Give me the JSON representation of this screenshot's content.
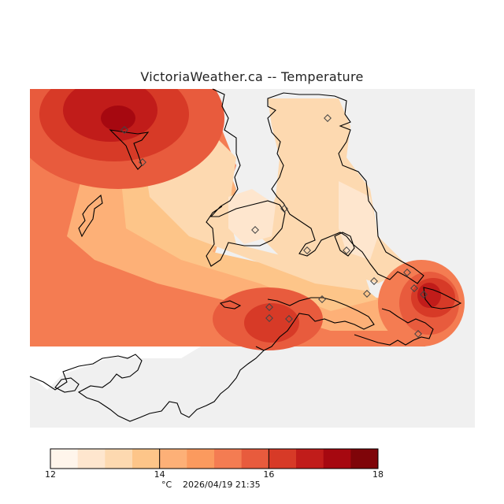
{
  "title": "VictoriaWeather.ca -- Temperature",
  "timestamp": "2026/04/19 21:35",
  "colorbar": {
    "units": "°C",
    "min": 12,
    "max": 18,
    "step": 0.5,
    "tick_labels": [
      "12",
      "14",
      "16",
      "18"
    ],
    "colors": [
      "#fff5eb",
      "#fee6ce",
      "#fdd9b0",
      "#fdc589",
      "#fdb077",
      "#fb9a5e",
      "#f47c52",
      "#e85b3d",
      "#d73a27",
      "#c11c1a",
      "#a60810",
      "#7f0509"
    ]
  },
  "colors": {
    "no_data_background": "#f0f0f0",
    "coastline": "#000000",
    "station_marker": "#444444"
  },
  "map": {
    "legend": "colorbar-bottom",
    "marker_icon": "diamond-icon",
    "station_count": 17
  }
}
